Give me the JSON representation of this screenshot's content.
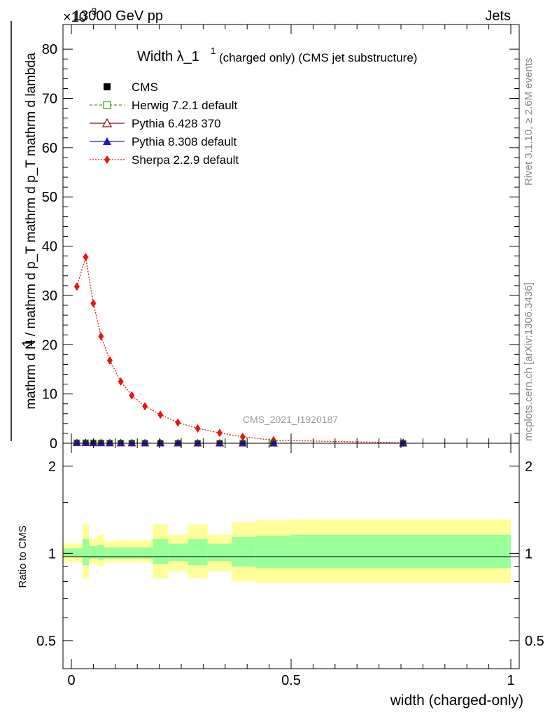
{
  "header": {
    "left": "13000 GeV pp",
    "right": "Jets",
    "exponent": "×10",
    "exponent_power": "-3"
  },
  "side_labels": {
    "rivet": "Rivet 3.1.10, ≥ 2.6M events",
    "mcplots": "mcplots.cern.ch [arXiv:1306.3436]"
  },
  "watermark": "CMS_2021_I1920187",
  "title": {
    "main": "Width λ_1",
    "sup": "1",
    "rest": "(charged only) (CMS jet substructure)"
  },
  "ylabel_main": {
    "numerator_one": "1",
    "numerator_dn": "mathrm d",
    "numerator_dn2": "N",
    "denominator": "mathrm d N / mathrm d p",
    "denominator_sub": "T",
    "denominator2": "mathrm d p",
    "denominator2_sub": "T",
    "denominator3": "mathrm d lambda",
    "left_full": "mathrm d N / mathrm d p_T mathrm d p_T mathrm d lambda"
  },
  "xlabel": "width (charged-only)",
  "ratio_ylabel": "Ratio to CMS",
  "legend": [
    {
      "name": "CMS",
      "color": "#000000",
      "marker": "square-filled",
      "line": "none"
    },
    {
      "name": "Herwig 7.2.1 default",
      "color": "#4a9a19",
      "marker": "square-open",
      "line": "dashed"
    },
    {
      "name": "Pythia 6.428 370",
      "color": "#8b0a1e",
      "marker": "triangle-open",
      "line": "solid"
    },
    {
      "name": "Pythia 8.308 default",
      "color": "#1a1ac8",
      "marker": "triangle-filled",
      "line": "solid"
    },
    {
      "name": "Sherpa 2.2.9 default",
      "color": "#e8130f",
      "marker": "diamond-filled",
      "line": "dotted"
    }
  ],
  "colors": {
    "band_outer": "#ffff99",
    "band_inner": "#99ff99"
  },
  "chart_data": {
    "type": "line",
    "xlim": [
      0,
      1
    ],
    "ylim_main": [
      0,
      85
    ],
    "ylim_ratio": [
      0.4,
      2.4
    ],
    "y_scale_main": "linear, units of 1e-3",
    "y_scale_ratio": "log",
    "main_ticks_y": [
      0,
      10,
      20,
      30,
      40,
      50,
      60,
      70,
      80
    ],
    "ratio_ticks_y": [
      0.5,
      1,
      2
    ],
    "x_ticks": [
      0,
      0.5,
      1
    ],
    "x_tick_labels": [
      "0",
      "0.5",
      "1"
    ],
    "main_tick_labels": [
      "0",
      "10",
      "20",
      "30",
      "40",
      "50",
      "60",
      "70",
      "80"
    ],
    "ratio_tick_labels": [
      "0.5",
      "1",
      "2"
    ],
    "series": [
      {
        "name": "Sherpa 2.2.9 default",
        "x": [
          0.0125,
          0.0325,
          0.05,
          0.0675,
          0.0875,
          0.1125,
          0.1375,
          0.1675,
          0.2025,
          0.2425,
          0.2875,
          0.3375,
          0.39,
          0.46,
          0.755
        ],
        "y": [
          31.8,
          37.8,
          28.4,
          21.7,
          16.8,
          12.5,
          9.7,
          7.5,
          5.8,
          4.2,
          3.0,
          2.1,
          1.3,
          0.6,
          0.1
        ]
      },
      {
        "name": "CMS",
        "x": [
          0.0125,
          0.0325,
          0.05,
          0.0675,
          0.0875,
          0.1125,
          0.1375,
          0.1675,
          0.2025,
          0.2425,
          0.2875,
          0.3375,
          0.39,
          0.46,
          0.755
        ],
        "y": [
          0.08,
          0.09,
          0.07,
          0.06,
          0.05,
          0.04,
          0.03,
          0.03,
          0.02,
          0.02,
          0.01,
          0.01,
          0.01,
          0.005,
          0.001
        ]
      },
      {
        "name": "Herwig 7.2.1 default",
        "x": [
          0.0125,
          0.0325,
          0.05,
          0.0675,
          0.0875,
          0.1125,
          0.1375,
          0.1675,
          0.2025,
          0.2425,
          0.2875,
          0.3375,
          0.39,
          0.46,
          0.755
        ],
        "y": [
          0.08,
          0.09,
          0.07,
          0.06,
          0.05,
          0.04,
          0.03,
          0.03,
          0.02,
          0.02,
          0.01,
          0.01,
          0.01,
          0.005,
          0.001
        ]
      },
      {
        "name": "Pythia 6.428 370",
        "x": [
          0.0125,
          0.0325,
          0.05,
          0.0675,
          0.0875,
          0.1125,
          0.1375,
          0.1675,
          0.2025,
          0.2425,
          0.2875,
          0.3375,
          0.39,
          0.46,
          0.755
        ],
        "y": [
          0.08,
          0.09,
          0.07,
          0.06,
          0.05,
          0.04,
          0.03,
          0.03,
          0.02,
          0.02,
          0.01,
          0.01,
          0.01,
          0.005,
          0.001
        ]
      },
      {
        "name": "Pythia 8.308 default",
        "x": [
          0.0125,
          0.0325,
          0.05,
          0.0675,
          0.0875,
          0.1125,
          0.1375,
          0.1675,
          0.2025,
          0.2425,
          0.2875,
          0.3375,
          0.39,
          0.46,
          0.755
        ],
        "y": [
          0.08,
          0.09,
          0.07,
          0.06,
          0.05,
          0.04,
          0.03,
          0.03,
          0.02,
          0.02,
          0.01,
          0.01,
          0.01,
          0.005,
          0.001
        ]
      }
    ],
    "ratio_bands": {
      "bin_edges": [
        0,
        0.025,
        0.04,
        0.06,
        0.075,
        0.1,
        0.125,
        0.15,
        0.185,
        0.22,
        0.265,
        0.31,
        0.365,
        0.42,
        0.5,
        1.0
      ],
      "outer_low": [
        0.93,
        0.82,
        0.92,
        0.9,
        0.93,
        0.93,
        0.93,
        0.93,
        0.82,
        0.87,
        0.82,
        0.87,
        0.8,
        0.79,
        0.79
      ],
      "outer_high": [
        1.08,
        1.26,
        1.12,
        1.16,
        1.1,
        1.11,
        1.11,
        1.11,
        1.26,
        1.16,
        1.26,
        1.16,
        1.28,
        1.3,
        1.31
      ],
      "inner_low": [
        0.97,
        0.91,
        0.96,
        0.95,
        0.96,
        0.96,
        0.96,
        0.96,
        0.92,
        0.94,
        0.91,
        0.94,
        0.9,
        0.89,
        0.89
      ],
      "inner_high": [
        1.04,
        1.12,
        1.06,
        1.07,
        1.05,
        1.05,
        1.05,
        1.05,
        1.12,
        1.08,
        1.12,
        1.08,
        1.14,
        1.15,
        1.16
      ]
    }
  }
}
